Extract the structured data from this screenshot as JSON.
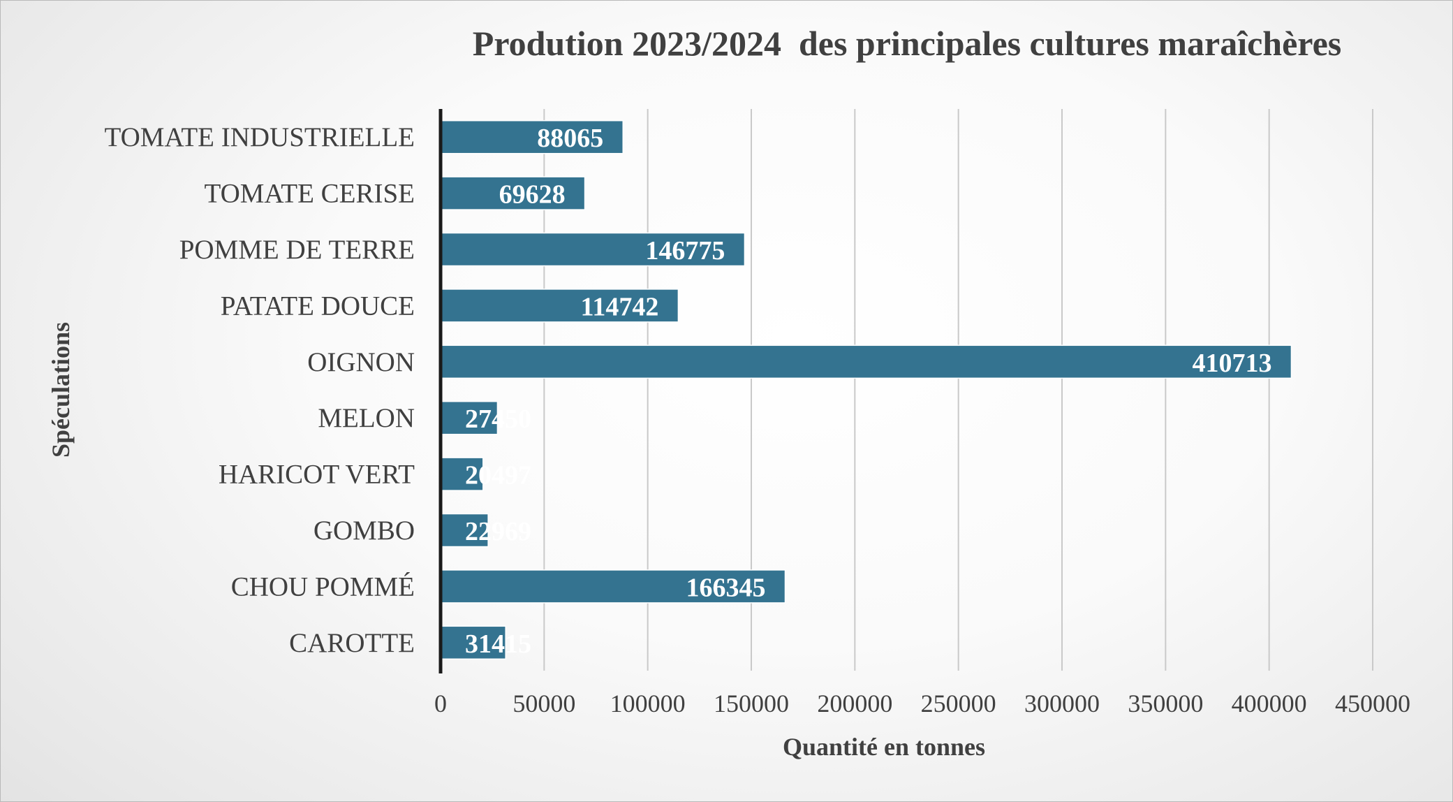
{
  "chart_data": {
    "type": "bar",
    "orientation": "horizontal",
    "title": "Prodution 2023/2024  des principales cultures maraîchères",
    "xlabel": "Quantité en tonnes",
    "ylabel": "Spéculations",
    "categories": [
      "TOMATE INDUSTRIELLE",
      "TOMATE CERISE",
      "POMME DE TERRE",
      "PATATE DOUCE",
      "OIGNON",
      "MELON",
      "HARICOT  VERT",
      "GOMBO",
      "CHOU POMMÉ",
      "CAROTTE"
    ],
    "values": [
      88065,
      69628,
      146775,
      114742,
      410713,
      27450,
      20497,
      22969,
      166345,
      31415
    ],
    "data_labels": [
      "88065",
      "69628",
      "146775",
      "114742",
      "410713",
      "27450",
      "20497",
      "22969",
      "166345",
      "31415"
    ],
    "xlim": [
      0,
      450000
    ],
    "x_ticks": [
      "0",
      "50000",
      "100000",
      "150000",
      "200000",
      "250000",
      "300000",
      "350000",
      "400000",
      "450000"
    ],
    "grid": "vertical",
    "legend": "none",
    "colors": {
      "bar": "#347390",
      "bar_edge": "#ffffff",
      "gridline": "#c9c9c9",
      "axis": "#1a1a1a",
      "label_text": "#404040",
      "data_label": "#ffffff"
    }
  }
}
